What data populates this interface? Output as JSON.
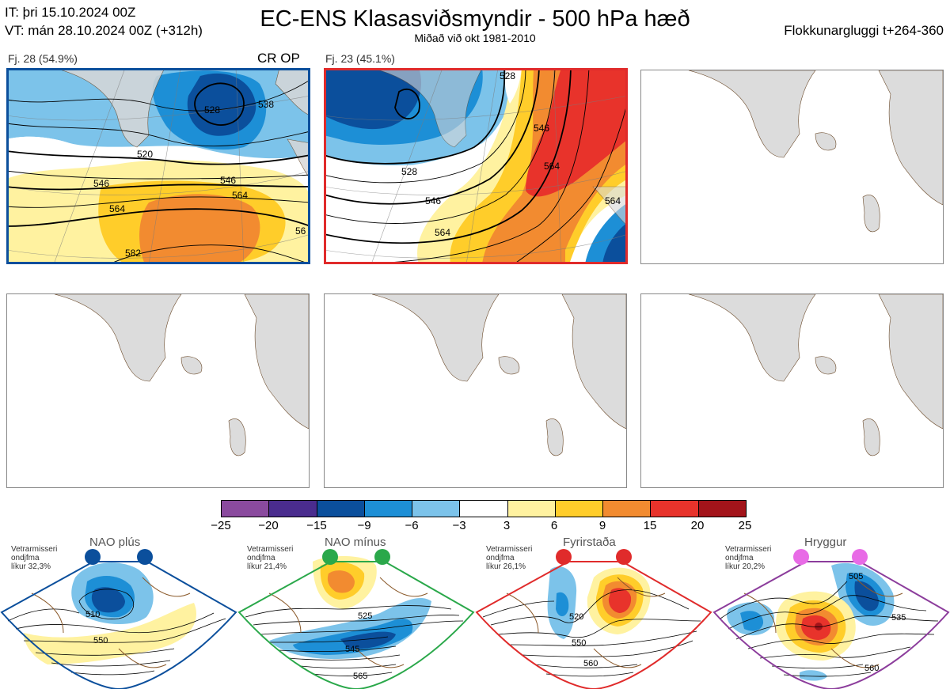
{
  "header": {
    "it_line": "IT: þri 15.10.2024 00Z",
    "vt_line": "VT: mán 28.10.2024 00Z  (+312h)",
    "title": "EC-ENS Klasasviðsmyndir - 500 hPa hæð",
    "subtitle": "Miðað við okt 1981-2010",
    "window": "Flokkunargluggi t+264-360"
  },
  "panels": [
    {
      "label": "Fj. 28 (54.9%)",
      "tag": "CR OP",
      "border_color": "#0b4f9c",
      "contour_labels": [
        "520",
        "528",
        "538",
        "546",
        "546",
        "564",
        "564",
        "582",
        "56"
      ]
    },
    {
      "label": "Fj. 23 (45.1%)",
      "tag": "",
      "border_color": "#e02b2b",
      "contour_labels": [
        "528",
        "546",
        "528",
        "546",
        "564",
        "564",
        "564"
      ]
    },
    {
      "label": "",
      "tag": "",
      "border_color": "#888888",
      "contour_labels": []
    },
    {
      "label": "",
      "tag": "",
      "border_color": "#888888",
      "contour_labels": []
    },
    {
      "label": "",
      "tag": "",
      "border_color": "#888888",
      "contour_labels": []
    },
    {
      "label": "",
      "tag": "",
      "border_color": "#888888",
      "contour_labels": []
    }
  ],
  "colorbar": {
    "ticks": [
      "−25",
      "−20",
      "−15",
      "−9",
      "−6",
      "−3",
      "3",
      "6",
      "9",
      "15",
      "20",
      "25"
    ],
    "colors": [
      "#8a4a9e",
      "#4a2c8e",
      "#0b4f9c",
      "#1d8fd6",
      "#7cc3ea",
      "#ffffff",
      "#fff2a0",
      "#ffcd2a",
      "#f28b30",
      "#e8332b",
      "#a3141a"
    ]
  },
  "regimes": [
    {
      "name": "NAO plús",
      "note": [
        "Vetrarmisseri",
        "ondjfma",
        "líkur 32,3%"
      ],
      "color": "#0b4f9c",
      "dot_color": "#0b4f9c",
      "labels": [
        "510",
        "550"
      ]
    },
    {
      "name": "NAO mínus",
      "note": [
        "Vetrarmisseri",
        "ondjfma",
        "líkur 21,4%"
      ],
      "color": "#2aa84a",
      "dot_color": "#2aa84a",
      "labels": [
        "525",
        "545",
        "565"
      ]
    },
    {
      "name": "Fyrirstaða",
      "note": [
        "Vetrarmisseri",
        "ondjfma",
        "líkur 26,1%"
      ],
      "color": "#e02b2b",
      "dot_color": "#e02b2b",
      "labels": [
        "520",
        "550",
        "560"
      ]
    },
    {
      "name": "Hryggur",
      "note": [
        "Vetrarmisseri",
        "ondjfma",
        "líkur 20,2%"
      ],
      "color": "#8c3d9c",
      "dot_color": "#e86be6",
      "labels": [
        "505",
        "535",
        "560"
      ]
    }
  ]
}
